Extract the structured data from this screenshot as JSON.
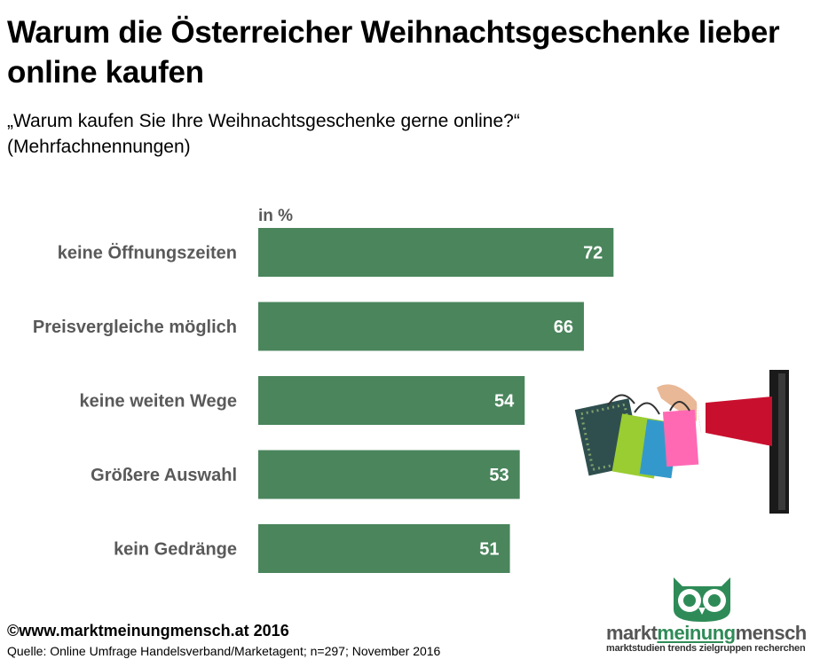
{
  "title": "Warum die Österreicher Weihnachtsgeschenke lieber online kaufen",
  "subtitle_line1": "„Warum kaufen Sie Ihre Weihnachtsgeschenke gerne online?“",
  "subtitle_line2": "(Mehrfachnennungen)",
  "footer": {
    "copyright": "©www.marktmeinungmensch.at 2016",
    "source": "Quelle: Online Umfrage Handelsverband/Marketagent; n=297; November 2016"
  },
  "logo": {
    "word_left": "markt",
    "word_mid": "meinung",
    "word_right": "mensch",
    "tagline": "marktstudien trends zielgruppen recherchen"
  },
  "colors": {
    "bar": "#4a855c",
    "label": "#595959",
    "logo_green": "#2e8b57"
  },
  "chart_data": {
    "type": "bar",
    "orientation": "horizontal",
    "unit_label": "in %",
    "categories": [
      "keine Öffnungszeiten",
      "Preisvergleiche möglich",
      "keine weiten Wege",
      "Größere Auswahl",
      "kein Gedränge"
    ],
    "values": [
      72,
      66,
      54,
      53,
      51
    ],
    "xlim": [
      0,
      100
    ],
    "grid": false,
    "legend": "none"
  }
}
